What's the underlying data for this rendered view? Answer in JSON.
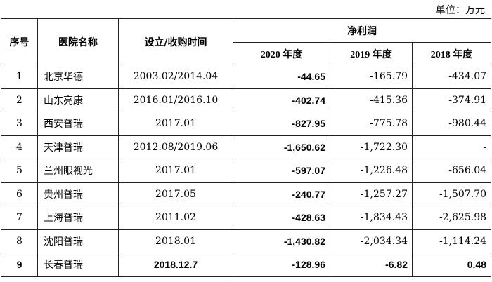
{
  "unit_label": "单位：万元",
  "headers": {
    "seq": "序号",
    "name": "医院名称",
    "time": "设立/收购时间",
    "profit": "净利润",
    "y2020": "2020 年度",
    "y2019": "2019 年度",
    "y2018": "2018 年度"
  },
  "rows": [
    {
      "seq": "1",
      "name": "北京华德",
      "time": "2003.02/2014.04",
      "y2020": "-44.65",
      "y2019": "-165.79",
      "y2018": "-434.07"
    },
    {
      "seq": "2",
      "name": "山东亮康",
      "time": "2016.01/2016.10",
      "y2020": "-402.74",
      "y2019": "-415.36",
      "y2018": "-374.91"
    },
    {
      "seq": "3",
      "name": "西安普瑞",
      "time": "2017.01",
      "y2020": "-827.95",
      "y2019": "-775.78",
      "y2018": "-980.44"
    },
    {
      "seq": "4",
      "name": "天津普瑞",
      "time": "2012.08/2019.06",
      "y2020": "-1,650.62",
      "y2019": "-1,722.30",
      "y2018": "-"
    },
    {
      "seq": "5",
      "name": "兰州眼视光",
      "time": "2017.01",
      "y2020": "-597.07",
      "y2019": "-1,226.48",
      "y2018": "-656.04"
    },
    {
      "seq": "6",
      "name": "贵州普瑞",
      "time": "2017.05",
      "y2020": "-240.77",
      "y2019": "-1,257.27",
      "y2018": "-1,507.70"
    },
    {
      "seq": "7",
      "name": "上海普瑞",
      "time": "2011.02",
      "y2020": "-428.63",
      "y2019": "-1,834.43",
      "y2018": "-2,625.98"
    },
    {
      "seq": "8",
      "name": "沈阳普瑞",
      "time": "2018.01",
      "y2020": "-1,430.82",
      "y2019": "-2,034.34",
      "y2018": "-1,114.24"
    },
    {
      "seq": "9",
      "name": "长春普瑞",
      "time": "2018.12.7",
      "y2020": "-128.96",
      "y2019": "-6.82",
      "y2018": "0.48"
    }
  ]
}
